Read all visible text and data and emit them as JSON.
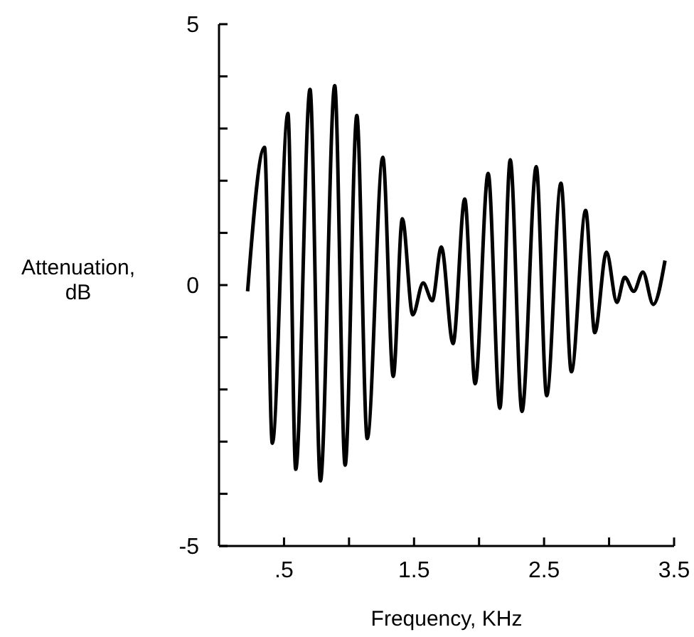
{
  "chart_data": {
    "type": "line",
    "xlabel": "Frequency, KHz",
    "ylabel": "Attenuation, dB",
    "xlim": [
      0,
      3.5
    ],
    "ylim": [
      -5,
      5
    ],
    "xticks": [
      {
        "value": 0.5,
        "label": ".5"
      },
      {
        "value": 1,
        "label": null
      },
      1.5,
      {
        "value": 2,
        "label": null
      },
      2.5,
      {
        "value": 3,
        "label": null
      },
      3.5
    ],
    "yticks": [
      -5,
      {
        "value": -4,
        "label": null
      },
      {
        "value": -3,
        "label": null
      },
      {
        "value": -2,
        "label": null
      },
      {
        "value": -1,
        "label": null
      },
      0,
      {
        "value": 1,
        "label": null
      },
      {
        "value": 2,
        "label": null
      },
      {
        "value": 3,
        "label": null
      },
      {
        "value": 4,
        "label": null
      },
      5
    ],
    "grid": false,
    "marker": "none",
    "line_style": "solid",
    "series": [
      {
        "color": "#000000",
        "x": [
          0.22,
          0.35,
          0.41,
          0.53,
          0.59,
          0.7,
          0.78,
          0.89,
          0.97,
          1.06,
          1.14,
          1.26,
          1.34,
          1.41,
          1.49,
          1.57,
          1.64,
          1.71,
          1.8,
          1.89,
          1.97,
          2.07,
          2.16,
          2.24,
          2.33,
          2.44,
          2.52,
          2.63,
          2.71,
          2.82,
          2.89,
          2.98,
          3.06,
          3.12,
          3.19,
          3.26,
          3.34,
          3.43
        ],
        "values": [
          -0.12,
          2.64,
          -3.03,
          3.29,
          -3.53,
          3.75,
          -3.75,
          3.82,
          -3.45,
          3.25,
          -2.94,
          2.45,
          -1.75,
          1.27,
          -0.57,
          0.04,
          -0.3,
          0.73,
          -1.12,
          1.65,
          -1.89,
          2.14,
          -2.36,
          2.4,
          -2.42,
          2.27,
          -2.12,
          1.95,
          -1.66,
          1.43,
          -0.91,
          0.63,
          -0.33,
          0.15,
          -0.12,
          0.25,
          -0.37,
          0.47
        ]
      }
    ]
  }
}
